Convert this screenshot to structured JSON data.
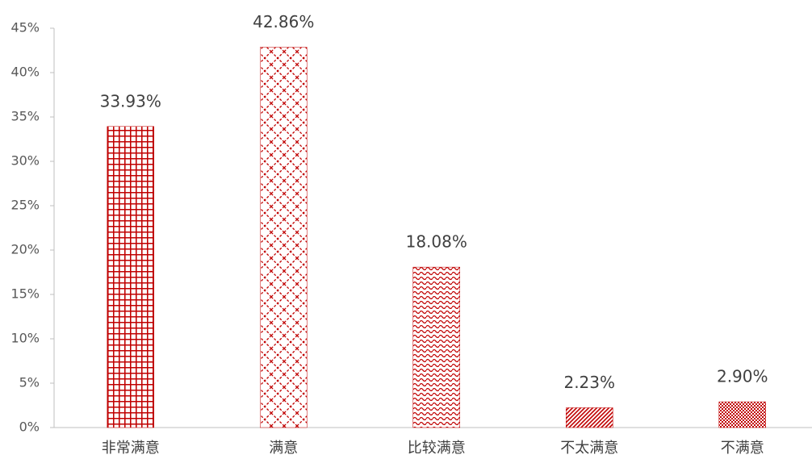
{
  "chart_data": {
    "type": "bar",
    "categories": [
      "非常满意",
      "满意",
      "比较满意",
      "不太满意",
      "不满意"
    ],
    "values": [
      33.93,
      42.86,
      18.08,
      2.23,
      2.9
    ],
    "value_labels": [
      "33.93%",
      "42.86%",
      "18.08%",
      "2.23%",
      "2.90%"
    ],
    "color": "#c00000",
    "ylim": [
      0,
      45
    ],
    "yticks": [
      {
        "value": 0,
        "label": "0%"
      },
      {
        "value": 5,
        "label": "5%"
      },
      {
        "value": 10,
        "label": "10%"
      },
      {
        "value": 15,
        "label": "15%"
      },
      {
        "value": 20,
        "label": "20%"
      },
      {
        "value": 25,
        "label": "25%"
      },
      {
        "value": 30,
        "label": "30%"
      },
      {
        "value": 35,
        "label": "35%"
      },
      {
        "value": 40,
        "label": "40%"
      },
      {
        "value": 45,
        "label": "45%"
      }
    ],
    "grid": false
  }
}
